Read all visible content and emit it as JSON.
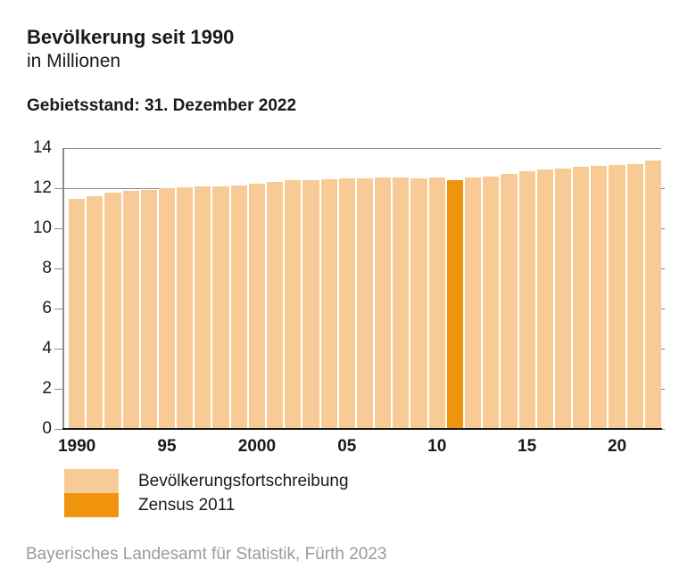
{
  "header": {
    "title": "Bevölkerung seit 1990",
    "subtitle": "in Millionen",
    "territorial_note": "Gebietsstand: 31. Dezember 2022"
  },
  "chart_data": {
    "type": "bar",
    "title": "Bevölkerung seit 1990",
    "subtitle": "in Millionen",
    "unit": "Millionen",
    "ylim": [
      0,
      14
    ],
    "yticks": [
      0,
      2,
      4,
      6,
      8,
      10,
      12,
      14
    ],
    "grid": "horizontal",
    "legend_position": "bottom-left",
    "xticks": [
      {
        "label": "1990",
        "year": 1990
      },
      {
        "label": "95",
        "year": 1995
      },
      {
        "label": "2000",
        "year": 2000
      },
      {
        "label": "05",
        "year": 2005
      },
      {
        "label": "10",
        "year": 2010
      },
      {
        "label": "15",
        "year": 2015
      },
      {
        "label": "20",
        "year": 2020
      }
    ],
    "series": [
      {
        "name": "Bevölkerungsfortschreibung",
        "color": "#F8CA96"
      },
      {
        "name": "Zensus 2011",
        "color": "#F0930D"
      }
    ],
    "bars": [
      {
        "year": 1990,
        "value": 11.45,
        "series": 0
      },
      {
        "year": 1991,
        "value": 11.6,
        "series": 0
      },
      {
        "year": 1992,
        "value": 11.77,
        "series": 0
      },
      {
        "year": 1993,
        "value": 11.86,
        "series": 0
      },
      {
        "year": 1994,
        "value": 11.92,
        "series": 0
      },
      {
        "year": 1995,
        "value": 11.99,
        "series": 0
      },
      {
        "year": 1996,
        "value": 12.04,
        "series": 0
      },
      {
        "year": 1997,
        "value": 12.07,
        "series": 0
      },
      {
        "year": 1998,
        "value": 12.09,
        "series": 0
      },
      {
        "year": 1999,
        "value": 12.15,
        "series": 0
      },
      {
        "year": 2000,
        "value": 12.23,
        "series": 0
      },
      {
        "year": 2001,
        "value": 12.33,
        "series": 0
      },
      {
        "year": 2002,
        "value": 12.39,
        "series": 0
      },
      {
        "year": 2003,
        "value": 12.42,
        "series": 0
      },
      {
        "year": 2004,
        "value": 12.44,
        "series": 0
      },
      {
        "year": 2005,
        "value": 12.47,
        "series": 0
      },
      {
        "year": 2006,
        "value": 12.49,
        "series": 0
      },
      {
        "year": 2007,
        "value": 12.52,
        "series": 0
      },
      {
        "year": 2008,
        "value": 12.52,
        "series": 0
      },
      {
        "year": 2009,
        "value": 12.51,
        "series": 0
      },
      {
        "year": 2010,
        "value": 12.54,
        "series": 0
      },
      {
        "year": 2011,
        "value": 12.4,
        "series": 1
      },
      {
        "year": 2012,
        "value": 12.52,
        "series": 0
      },
      {
        "year": 2013,
        "value": 12.6,
        "series": 0
      },
      {
        "year": 2014,
        "value": 12.69,
        "series": 0
      },
      {
        "year": 2015,
        "value": 12.84,
        "series": 0
      },
      {
        "year": 2016,
        "value": 12.93,
        "series": 0
      },
      {
        "year": 2017,
        "value": 13.0,
        "series": 0
      },
      {
        "year": 2018,
        "value": 13.08,
        "series": 0
      },
      {
        "year": 2019,
        "value": 13.12,
        "series": 0
      },
      {
        "year": 2020,
        "value": 13.14,
        "series": 0
      },
      {
        "year": 2021,
        "value": 13.18,
        "series": 0
      },
      {
        "year": 2022,
        "value": 13.37,
        "series": 0
      }
    ],
    "colors": {
      "bar": "#F8CA96",
      "highlight": "#F0930D",
      "grid": "#8C8C8C",
      "baseline": "#1A1A1A"
    }
  },
  "legend": {
    "items": [
      {
        "label": "Bevölkerungsfortschreibung",
        "color": "#F8CA96"
      },
      {
        "label": "Zensus 2011",
        "color": "#F0930D"
      }
    ]
  },
  "footer": {
    "source": "Bayerisches Landesamt für Statistik, Fürth 2023"
  }
}
